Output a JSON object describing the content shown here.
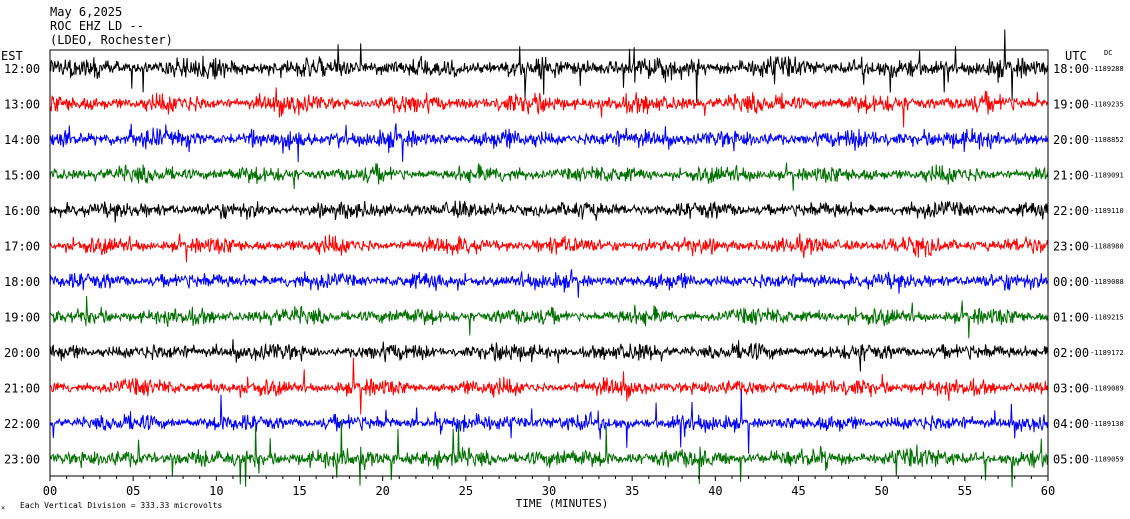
{
  "header": {
    "date": "May 6,2025",
    "station": "ROC EHZ LD --",
    "location": "(LDEO, Rochester)"
  },
  "left_axis_label": "EST",
  "right_axis_label": "UTC",
  "right_axis_sublabel": "DC",
  "x_axis_title": "TIME (MINUTES)",
  "footer_note": "Each Vertical Division = 333.33 microvolts",
  "colors": {
    "traces": [
      "#000000",
      "#ff0000",
      "#0000ff",
      "#007000"
    ],
    "frame": "#000000",
    "background": "#ffffff"
  },
  "chart_data": {
    "type": "line",
    "title": "ROC EHZ LD --",
    "xlabel": "TIME (MINUTES)",
    "x_ticks": [
      "00",
      "05",
      "10",
      "15",
      "20",
      "25",
      "30",
      "35",
      "40",
      "45",
      "50",
      "55",
      "60"
    ],
    "xlim": [
      0,
      60
    ],
    "rows": [
      {
        "est": "12:00",
        "utc": "18:00",
        "dc": "1189288",
        "color": "#000000",
        "noise": 0.55,
        "spikes": 0.3
      },
      {
        "est": "13:00",
        "utc": "19:00",
        "dc": "1189235",
        "color": "#ff0000",
        "noise": 0.5,
        "spikes": 0.25
      },
      {
        "est": "14:00",
        "utc": "20:00",
        "dc": "1188852",
        "color": "#0000ff",
        "noise": 0.5,
        "spikes": 0.2
      },
      {
        "est": "15:00",
        "utc": "21:00",
        "dc": "1189091",
        "color": "#007000",
        "noise": 0.45,
        "spikes": 0.15
      },
      {
        "est": "16:00",
        "utc": "22:00",
        "dc": "1189110",
        "color": "#000000",
        "noise": 0.45,
        "spikes": 0.15
      },
      {
        "est": "17:00",
        "utc": "23:00",
        "dc": "1188980",
        "color": "#ff0000",
        "noise": 0.45,
        "spikes": 0.15
      },
      {
        "est": "18:00",
        "utc": "00:00",
        "dc": "1189088",
        "color": "#0000ff",
        "noise": 0.45,
        "spikes": 0.15
      },
      {
        "est": "19:00",
        "utc": "01:00",
        "dc": "1189215",
        "color": "#007000",
        "noise": 0.45,
        "spikes": 0.2
      },
      {
        "est": "20:00",
        "utc": "02:00",
        "dc": "1189172",
        "color": "#000000",
        "noise": 0.45,
        "spikes": 0.2
      },
      {
        "est": "21:00",
        "utc": "03:00",
        "dc": "1189089",
        "color": "#ff0000",
        "noise": 0.45,
        "spikes": 0.25
      },
      {
        "est": "22:00",
        "utc": "04:00",
        "dc": "1189130",
        "color": "#0000ff",
        "noise": 0.45,
        "spikes": 0.3
      },
      {
        "est": "23:00",
        "utc": "05:00",
        "dc": "1189059",
        "color": "#007000",
        "noise": 0.5,
        "spikes": 0.35
      }
    ]
  }
}
